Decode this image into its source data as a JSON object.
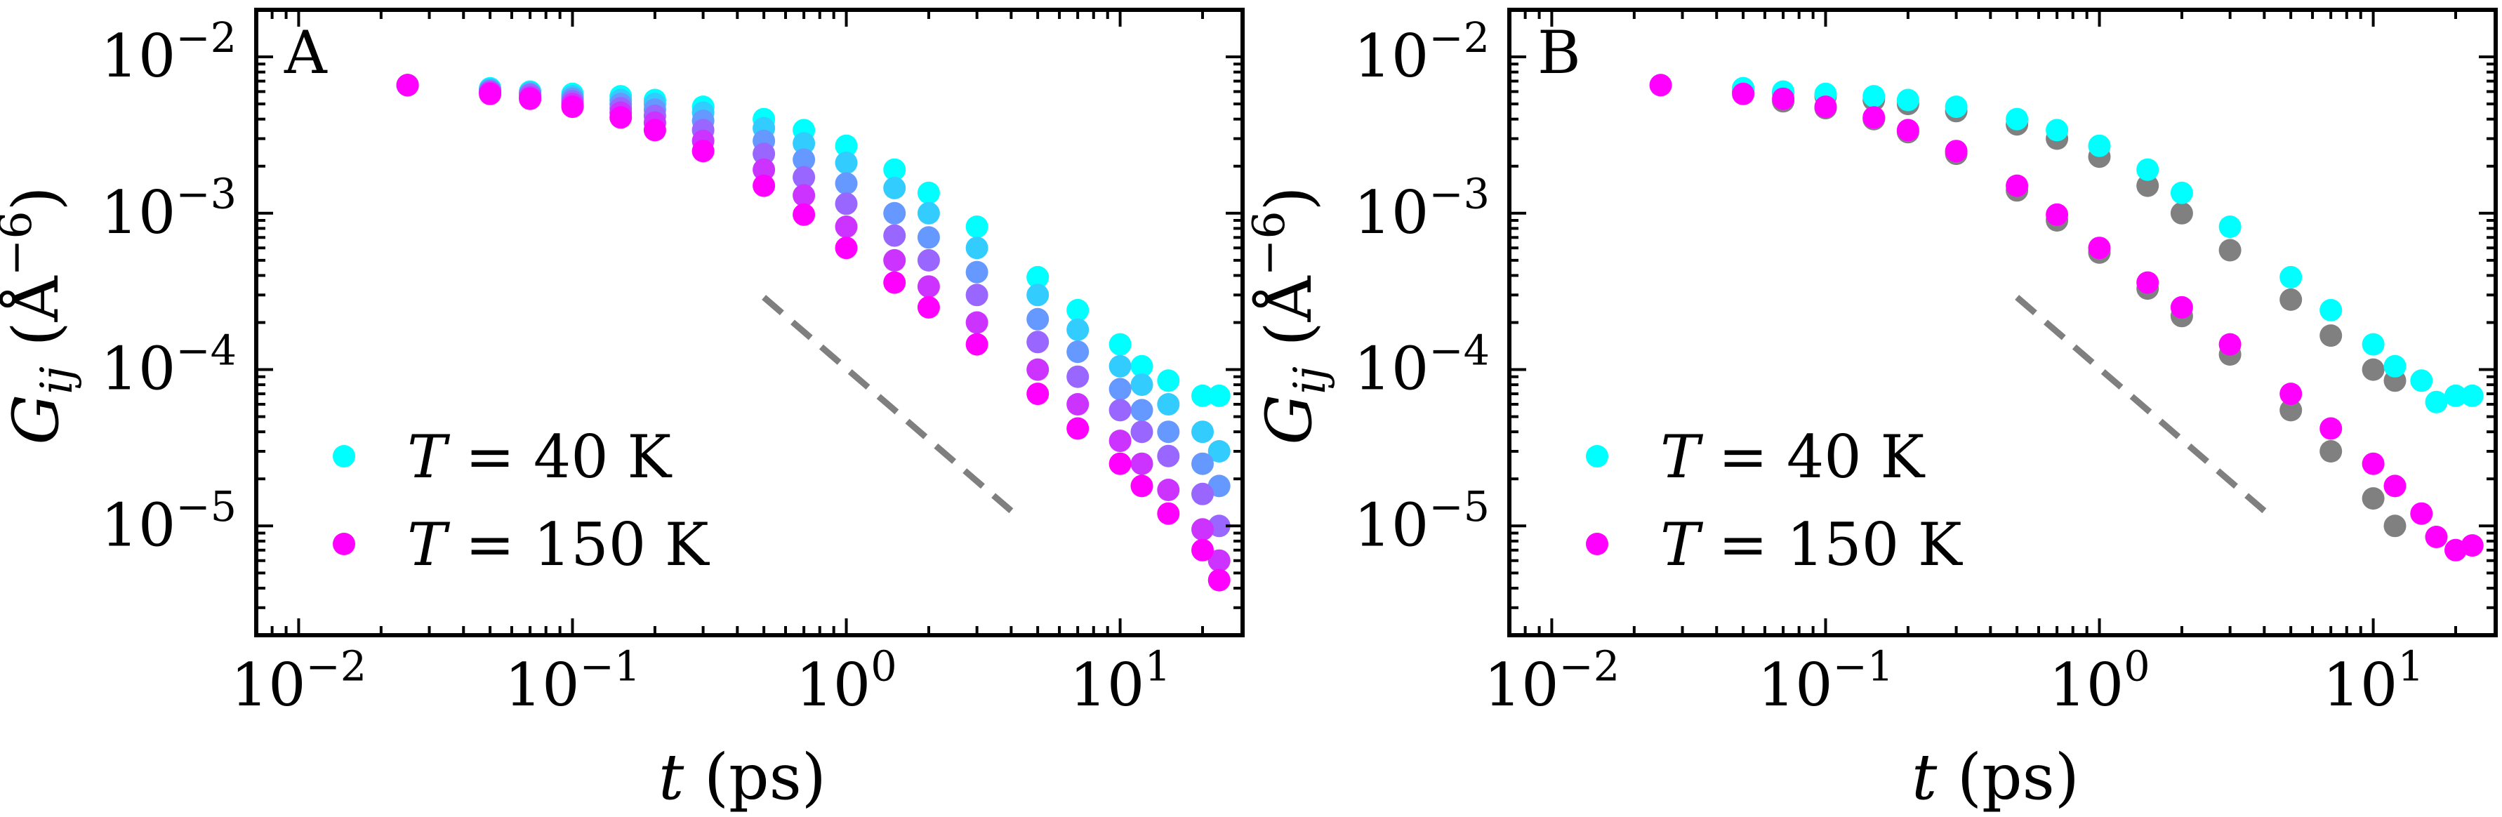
{
  "chart_data": [
    {
      "panel_label": "A",
      "type": "scatter",
      "xscale": "log",
      "yscale": "log",
      "xlim": [
        0.007,
        28
      ],
      "ylim": [
        2e-06,
        0.02
      ],
      "xlabel": "t (ps)",
      "ylabel": "G_ij (Å^-6)",
      "x_tick_labels": [
        "10^-2",
        "10^-1",
        "10^0",
        "10^1"
      ],
      "y_tick_labels": [
        "10^-5",
        "10^-4",
        "10^-3",
        "10^-2"
      ],
      "legend": {
        "position": "lower-left",
        "entries": [
          {
            "label": "T = 40 K",
            "color": "#00ffff"
          },
          {
            "label": "T = 150 K",
            "color": "#ff00ff"
          }
        ]
      },
      "guide_line": {
        "style": "dashed",
        "color": "#7f7f7f",
        "x": [
          0.5,
          4.0
        ],
        "y": [
          0.00029,
          1.25e-05
        ]
      },
      "series": [
        {
          "label": "T = 40 K",
          "color": "#00ffff",
          "x": [
            0.025,
            0.05,
            0.07,
            0.1,
            0.15,
            0.2,
            0.3,
            0.5,
            0.7,
            1,
            1.5,
            2,
            3,
            5,
            7,
            10,
            12,
            15,
            20,
            23
          ],
          "y": [
            0.0066,
            0.0063,
            0.006,
            0.0058,
            0.0056,
            0.0053,
            0.0048,
            0.004,
            0.0034,
            0.0027,
            0.0019,
            0.00135,
            0.00082,
            0.00039,
            0.00024,
            0.000145,
            0.000105,
            8.5e-05,
            6.8e-05,
            6.8e-05
          ]
        },
        {
          "label": "",
          "color": "#33ccff",
          "x": [
            0.025,
            0.05,
            0.07,
            0.1,
            0.15,
            0.2,
            0.3,
            0.5,
            0.7,
            1,
            1.5,
            2,
            3,
            5,
            7,
            10,
            12,
            15,
            20,
            23
          ],
          "y": [
            0.0066,
            0.0062,
            0.0059,
            0.0056,
            0.0053,
            0.005,
            0.0044,
            0.0035,
            0.0028,
            0.0021,
            0.00145,
            0.001,
            0.0006,
            0.0003,
            0.00018,
            0.000105,
            8e-05,
            6e-05,
            4e-05,
            3e-05
          ]
        },
        {
          "label": "",
          "color": "#6699ff",
          "x": [
            0.025,
            0.05,
            0.07,
            0.1,
            0.15,
            0.2,
            0.3,
            0.5,
            0.7,
            1,
            1.5,
            2,
            3,
            5,
            7,
            10,
            12,
            15,
            20,
            23
          ],
          "y": [
            0.0066,
            0.0061,
            0.0058,
            0.0054,
            0.005,
            0.0046,
            0.0039,
            0.0029,
            0.0022,
            0.00155,
            0.001,
            0.0007,
            0.00042,
            0.00021,
            0.00013,
            7.5e-05,
            5.5e-05,
            4e-05,
            2.5e-05,
            1.8e-05
          ]
        },
        {
          "label": "",
          "color": "#9966ff",
          "x": [
            0.025,
            0.05,
            0.07,
            0.1,
            0.15,
            0.2,
            0.3,
            0.5,
            0.7,
            1,
            1.5,
            2,
            3,
            5,
            7,
            10,
            12,
            15,
            20,
            23
          ],
          "y": [
            0.0066,
            0.006,
            0.0057,
            0.0052,
            0.0047,
            0.0042,
            0.0034,
            0.0024,
            0.0017,
            0.00115,
            0.00072,
            0.0005,
            0.0003,
            0.00015,
            9e-05,
            5.5e-05,
            4e-05,
            2.8e-05,
            1.6e-05,
            1e-05
          ]
        },
        {
          "label": "",
          "color": "#cc33ff",
          "x": [
            0.025,
            0.05,
            0.07,
            0.1,
            0.15,
            0.2,
            0.3,
            0.5,
            0.7,
            1,
            1.5,
            2,
            3,
            5,
            7,
            10,
            12,
            15,
            20,
            23
          ],
          "y": [
            0.0066,
            0.0059,
            0.0055,
            0.005,
            0.0044,
            0.0038,
            0.0029,
            0.0019,
            0.0013,
            0.00082,
            0.0005,
            0.00034,
            0.0002,
            0.0001,
            6e-05,
            3.5e-05,
            2.5e-05,
            1.7e-05,
            9.5e-06,
            6e-06
          ]
        },
        {
          "label": "T = 150 K",
          "color": "#ff00ff",
          "x": [
            0.025,
            0.05,
            0.07,
            0.1,
            0.15,
            0.2,
            0.3,
            0.5,
            0.7,
            1,
            1.5,
            2,
            3,
            5,
            7,
            10,
            12,
            15,
            20,
            23
          ],
          "y": [
            0.0066,
            0.0058,
            0.0054,
            0.0048,
            0.0041,
            0.0034,
            0.0025,
            0.0015,
            0.00098,
            0.0006,
            0.00036,
            0.00025,
            0.000145,
            7e-05,
            4.2e-05,
            2.5e-05,
            1.8e-05,
            1.2e-05,
            7e-06,
            4.5e-06
          ]
        }
      ]
    },
    {
      "panel_label": "B",
      "type": "scatter",
      "xscale": "log",
      "yscale": "log",
      "xlim": [
        0.007,
        28
      ],
      "ylim": [
        2e-06,
        0.02
      ],
      "xlabel": "t (ps)",
      "ylabel": "G_ij (Å^-6)",
      "x_tick_labels": [
        "10^-2",
        "10^-1",
        "10^0",
        "10^1"
      ],
      "y_tick_labels": [
        "10^-5",
        "10^-4",
        "10^-3",
        "10^-2"
      ],
      "legend": {
        "position": "lower-left",
        "entries": [
          {
            "label": "T = 40 K",
            "color": "#00ffff"
          },
          {
            "label": "T = 150 K",
            "color": "#ff00ff"
          }
        ]
      },
      "guide_line": {
        "style": "dashed",
        "color": "#7f7f7f",
        "x": [
          0.5,
          4.0
        ],
        "y": [
          0.00029,
          1.25e-05
        ]
      },
      "series": [
        {
          "label": "",
          "color": "#808080",
          "x": [
            0.05,
            0.07,
            0.1,
            0.15,
            0.2,
            0.3,
            0.5,
            0.7,
            1,
            1.5,
            2,
            3,
            5,
            7,
            10,
            12
          ],
          "y": [
            0.0063,
            0.0059,
            0.0056,
            0.0053,
            0.005,
            0.0045,
            0.0037,
            0.003,
            0.0023,
            0.0015,
            0.001,
            0.00058,
            0.00028,
            0.000165,
            0.0001,
            8.5e-05
          ]
        },
        {
          "label": "",
          "color": "#808080",
          "x": [
            0.05,
            0.07,
            0.1,
            0.15,
            0.2,
            0.3,
            0.5,
            0.7,
            1,
            1.5,
            2,
            3,
            5,
            7,
            10,
            12
          ],
          "y": [
            0.006,
            0.0052,
            0.0047,
            0.004,
            0.0033,
            0.0024,
            0.0014,
            0.0009,
            0.00056,
            0.00033,
            0.00022,
            0.000125,
            5.5e-05,
            3e-05,
            1.5e-05,
            1e-05
          ]
        },
        {
          "label": "T = 40 K",
          "color": "#00ffff",
          "x": [
            0.025,
            0.05,
            0.07,
            0.1,
            0.15,
            0.2,
            0.3,
            0.5,
            0.7,
            1,
            1.5,
            2,
            3,
            5,
            7,
            10,
            12,
            15,
            17,
            20,
            23
          ],
          "y": [
            0.0066,
            0.0063,
            0.006,
            0.0058,
            0.0056,
            0.0053,
            0.0048,
            0.004,
            0.0034,
            0.0027,
            0.0019,
            0.00135,
            0.00082,
            0.00039,
            0.00024,
            0.000145,
            0.000105,
            8.5e-05,
            6.2e-05,
            6.8e-05,
            6.8e-05
          ]
        },
        {
          "label": "T = 150 K",
          "color": "#ff00ff",
          "x": [
            0.025,
            0.05,
            0.07,
            0.1,
            0.15,
            0.2,
            0.3,
            0.5,
            0.7,
            1,
            1.5,
            2,
            3,
            5,
            7,
            10,
            12,
            15,
            17,
            20,
            23
          ],
          "y": [
            0.0066,
            0.0058,
            0.0054,
            0.0048,
            0.0041,
            0.0034,
            0.0025,
            0.0015,
            0.00098,
            0.0006,
            0.00036,
            0.00025,
            0.000145,
            7e-05,
            4.2e-05,
            2.5e-05,
            1.8e-05,
            1.2e-05,
            8.5e-06,
            7e-06,
            7.5e-06
          ]
        }
      ]
    }
  ]
}
